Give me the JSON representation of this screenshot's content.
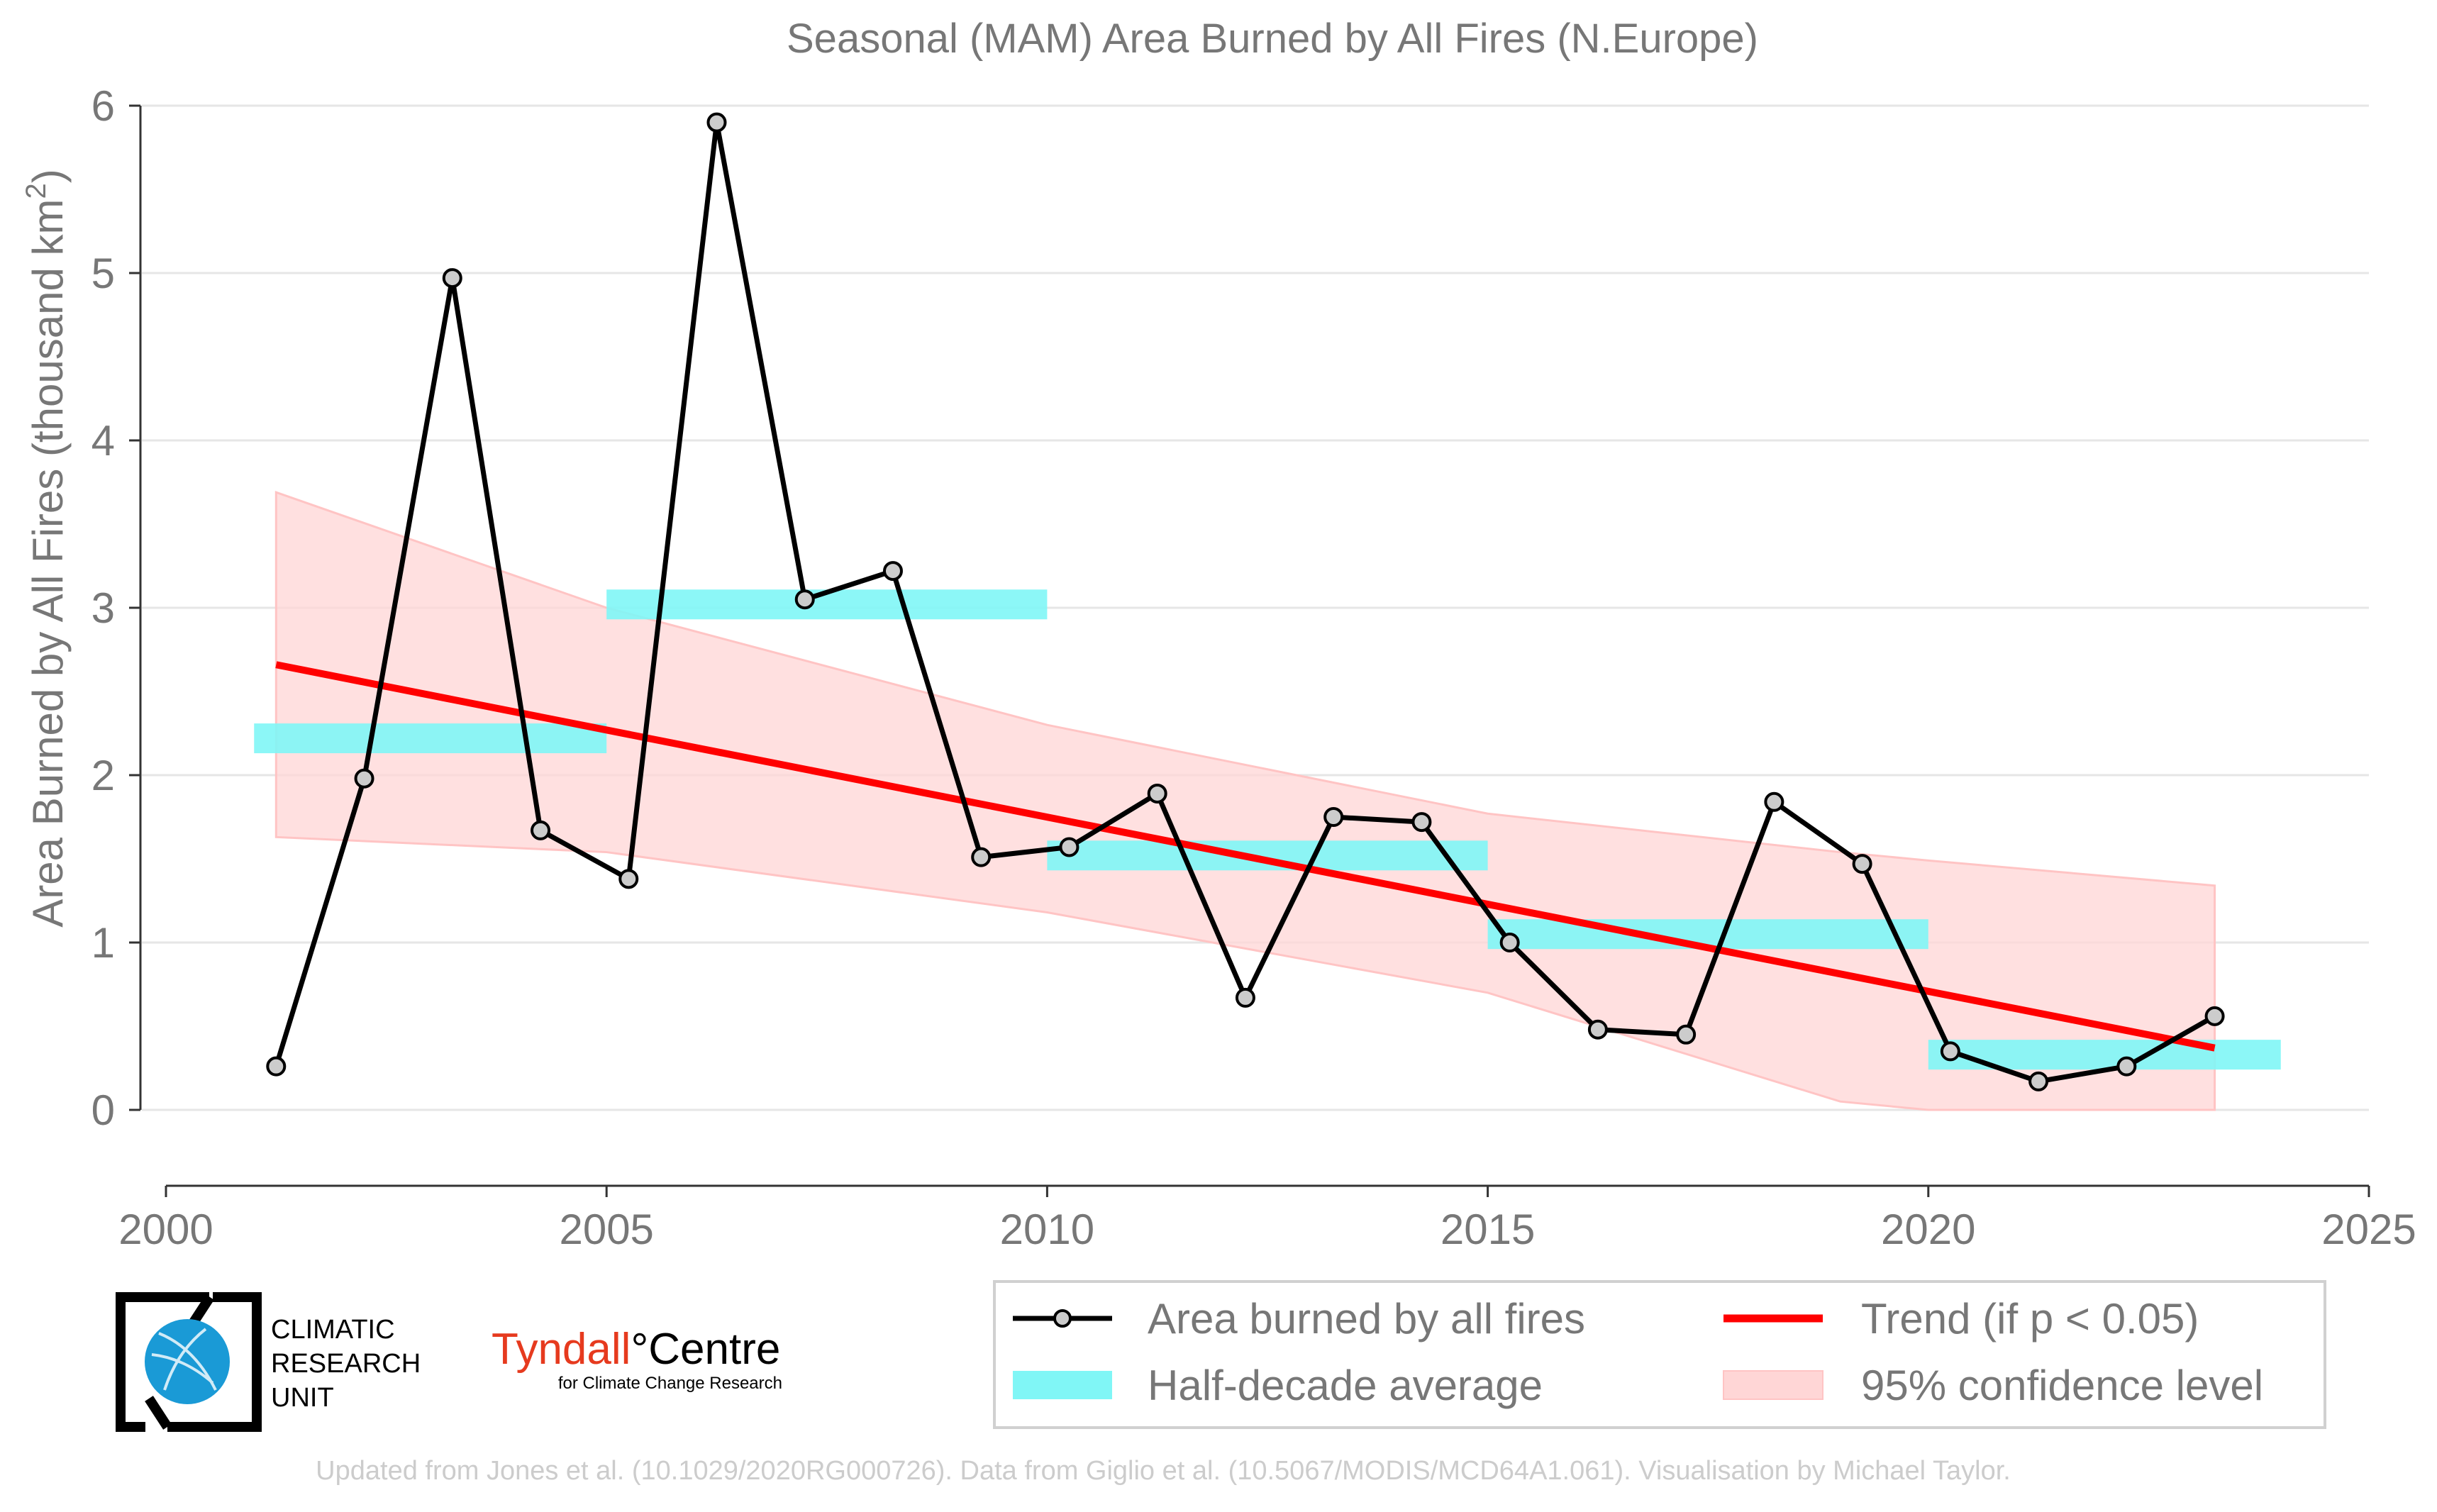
{
  "chart_data": {
    "type": "line",
    "title": "Seasonal (MAM) Area Burned by All Fires (N.Europe)",
    "xlabel": "",
    "ylabel": "Area Burned by All Fires (thousand km",
    "ylabel_sup": "2",
    "ylabel_close": ")",
    "xlim": [
      2000,
      2025
    ],
    "ylim": [
      -0.45,
      6.1
    ],
    "x_ticks": [
      2000,
      2005,
      2010,
      2015,
      2020,
      2025
    ],
    "y_ticks": [
      0,
      1,
      2,
      3,
      4,
      5,
      6
    ],
    "grid": "horizontal",
    "legend_position": "bottom-right",
    "series": [
      {
        "name": "Area burned by all fires",
        "color": "#000000",
        "marker_fill": "#cccccc",
        "x": [
          2001.25,
          2002.25,
          2003.25,
          2004.25,
          2005.25,
          2006.25,
          2007.25,
          2008.25,
          2009.25,
          2010.25,
          2011.25,
          2012.25,
          2013.25,
          2014.25,
          2015.25,
          2016.25,
          2017.25,
          2018.25,
          2019.25,
          2020.25,
          2021.25,
          2022.25,
          2023.25
        ],
        "values": [
          0.26,
          1.98,
          4.97,
          1.67,
          1.38,
          5.9,
          3.05,
          3.22,
          1.51,
          1.57,
          1.89,
          0.67,
          1.75,
          1.72,
          1.0,
          0.48,
          0.45,
          1.84,
          1.47,
          0.35,
          0.17,
          0.26,
          0.56
        ]
      }
    ],
    "half_decade_average": {
      "name": "Half-decade average",
      "color": "#80f6f6",
      "segments": [
        {
          "x": [
            2001,
            2005
          ],
          "value": 2.22
        },
        {
          "x": [
            2005,
            2010
          ],
          "value": 3.02
        },
        {
          "x": [
            2010,
            2015
          ],
          "value": 1.52
        },
        {
          "x": [
            2015,
            2020
          ],
          "value": 1.05
        },
        {
          "x": [
            2020,
            2024
          ],
          "value": 0.33
        }
      ]
    },
    "trend": {
      "name": "Trend (if p < 0.05)",
      "color": "#ff0000",
      "x": [
        2001.25,
        2023.25
      ],
      "values": [
        2.66,
        0.37
      ]
    },
    "confidence_band": {
      "name": "95% confidence level",
      "color": "#ffd6d6",
      "x": [
        2001.25,
        2005,
        2010,
        2015,
        2019,
        2020,
        2023.25
      ],
      "upper": [
        3.69,
        3.0,
        2.3,
        1.77,
        1.54,
        1.49,
        1.34
      ],
      "lower": [
        1.63,
        1.54,
        1.18,
        0.7,
        0.05,
        0.0,
        0.0
      ]
    }
  },
  "logos": {
    "cru_line1": "CLIMATIC",
    "cru_line2": "RESEARCH",
    "cru_line3": "UNIT",
    "tyndall_name": "Tyndall",
    "tyndall_degree": "°",
    "tyndall_centre": "Centre",
    "tyndall_sub": "for Climate Change Research"
  },
  "footer": "Updated from Jones et al. (10.1029/2020RG000726). Data from Giglio et al. (10.5067/MODIS/MCD64A1.061). Visualisation by Michael Taylor.",
  "colors": {
    "text_gray": "#777777",
    "footer_gray": "#cccccc",
    "grid": "#e6e6e6",
    "tyndall_red": "#e63a1e",
    "cru_blue": "#1a9ad6"
  }
}
